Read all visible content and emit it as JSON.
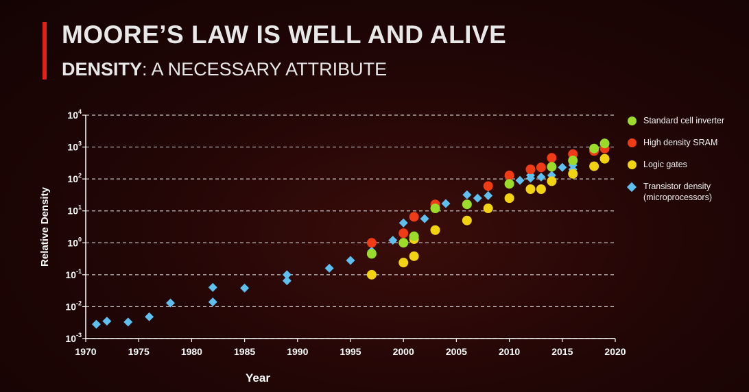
{
  "slide": {
    "title": "MOORE’S LAW IS WELL AND ALIVE",
    "subtitle_bold": "DENSITY",
    "subtitle_rest": ": A NECESSARY ATTRIBUTE"
  },
  "colors": {
    "accent": "#e3201b",
    "standard_cell_inverter": "#9bdb2a",
    "high_density_sram": "#ef3b16",
    "logic_gates": "#f2d312",
    "transistor_density": "#5fc0f0"
  },
  "chart_data": {
    "type": "scatter",
    "xlabel": "Year",
    "ylabel": "Relative Density",
    "xlim": [
      1970,
      2020
    ],
    "ylim": [
      -3,
      4
    ],
    "y_scale": "log10",
    "x_ticks": [
      1970,
      1975,
      1980,
      1985,
      1990,
      1995,
      2000,
      2005,
      2010,
      2015,
      2020
    ],
    "y_ticks": [
      {
        "base": "10",
        "exp": "-3"
      },
      {
        "base": "10",
        "exp": "-2"
      },
      {
        "base": "10",
        "exp": "-1"
      },
      {
        "base": "10",
        "exp": "0"
      },
      {
        "base": "10",
        "exp": "1"
      },
      {
        "base": "10",
        "exp": "2"
      },
      {
        "base": "10",
        "exp": "3"
      },
      {
        "base": "10",
        "exp": "4"
      }
    ],
    "grid": "horizontal dashed",
    "legend_position": "right",
    "series": [
      {
        "name": "Transistor density\n(microprocessors)",
        "marker": "diamond",
        "color": "#5fc0f0",
        "points": [
          [
            1971,
            0.0028
          ],
          [
            1972,
            0.0035
          ],
          [
            1974,
            0.0033
          ],
          [
            1976,
            0.0048
          ],
          [
            1978,
            0.013
          ],
          [
            1982,
            0.04
          ],
          [
            1982,
            0.014
          ],
          [
            1985,
            0.038
          ],
          [
            1989,
            0.1
          ],
          [
            1989,
            0.065
          ],
          [
            1993,
            0.16
          ],
          [
            1995,
            0.28
          ],
          [
            1997,
            0.55
          ],
          [
            1999,
            1.2
          ],
          [
            2000,
            4.2
          ],
          [
            2002,
            5.7
          ],
          [
            2004,
            17
          ],
          [
            2006,
            32
          ],
          [
            2007,
            25
          ],
          [
            2008,
            55
          ],
          [
            2008,
            30
          ],
          [
            2010,
            80
          ],
          [
            2011,
            90
          ],
          [
            2012,
            105
          ],
          [
            2012,
            130
          ],
          [
            2013,
            115
          ],
          [
            2014,
            130
          ],
          [
            2015,
            230
          ],
          [
            2016,
            200
          ],
          [
            2016,
            270
          ]
        ]
      },
      {
        "name": "Logic gates",
        "marker": "circle",
        "color": "#f2d312",
        "points": [
          [
            1997,
            0.1
          ],
          [
            2000,
            0.24
          ],
          [
            2001,
            0.38
          ],
          [
            2001,
            1.3
          ],
          [
            2003,
            2.5
          ],
          [
            2006,
            5
          ],
          [
            2008,
            12
          ],
          [
            2010,
            25
          ],
          [
            2012,
            48
          ],
          [
            2013,
            48
          ],
          [
            2014,
            85
          ],
          [
            2016,
            145
          ],
          [
            2018,
            250
          ],
          [
            2019,
            430
          ]
        ]
      },
      {
        "name": "High density SRAM",
        "marker": "circle",
        "color": "#ef3b16",
        "points": [
          [
            1997,
            1.0
          ],
          [
            2000,
            2.0
          ],
          [
            2001,
            6.5
          ],
          [
            2003,
            16
          ],
          [
            2008,
            60
          ],
          [
            2010,
            130
          ],
          [
            2012,
            200
          ],
          [
            2013,
            230
          ],
          [
            2014,
            460
          ],
          [
            2016,
            600
          ],
          [
            2018,
            750
          ],
          [
            2019,
            900
          ]
        ]
      },
      {
        "name": "Standard cell inverter",
        "marker": "circle",
        "color": "#9bdb2a",
        "points": [
          [
            1997,
            0.45
          ],
          [
            2000,
            1.0
          ],
          [
            2001,
            1.6
          ],
          [
            2003,
            12
          ],
          [
            2006,
            16
          ],
          [
            2010,
            70
          ],
          [
            2014,
            240
          ],
          [
            2016,
            380
          ],
          [
            2018,
            900
          ],
          [
            2019,
            1300
          ]
        ]
      }
    ],
    "legend_order": [
      "Standard cell inverter",
      "High density SRAM",
      "Logic gates",
      "Transistor density\n(microprocessors)"
    ]
  },
  "legend": [
    {
      "label": "Standard cell inverter",
      "color": "#9bdb2a",
      "shape": "circle"
    },
    {
      "label": "High density SRAM",
      "color": "#ef3b16",
      "shape": "circle"
    },
    {
      "label": "Logic gates",
      "color": "#f2d312",
      "shape": "circle"
    },
    {
      "label": "Transistor density\n(microprocessors)",
      "color": "#5fc0f0",
      "shape": "diamond"
    }
  ]
}
